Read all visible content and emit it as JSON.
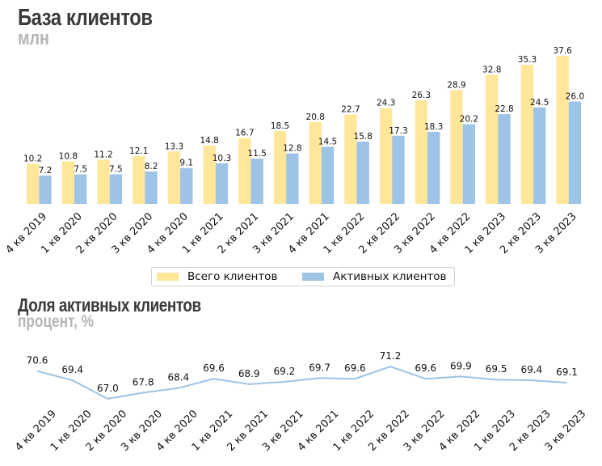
{
  "colors": {
    "total": "#ffe699",
    "active": "#9dc3e6",
    "line": "#9dc3e6",
    "title": "#3a3a3a",
    "subtitle": "#b5b5b5"
  },
  "chart_data": [
    {
      "type": "bar",
      "title": "База клиентов",
      "subtitle": "млн",
      "categories": [
        "4 кв 2019",
        "1 кв 2020",
        "2 кв 2020",
        "3 кв 2020",
        "4 кв 2020",
        "1 кв 2021",
        "2 кв 2021",
        "3 кв 2021",
        "4 кв 2021",
        "1 кв 2022",
        "2 кв 2022",
        "3 кв 2022",
        "4 кв 2022",
        "1 кв 2023",
        "2 кв 2023",
        "3 кв 2023"
      ],
      "series": [
        {
          "name": "Всего клиентов",
          "values": [
            10.2,
            10.8,
            11.2,
            12.1,
            13.3,
            14.8,
            16.7,
            18.5,
            20.8,
            22.7,
            24.3,
            26.3,
            28.9,
            32.8,
            35.3,
            37.6
          ]
        },
        {
          "name": "Активных клиентов",
          "values": [
            7.2,
            7.5,
            7.5,
            8.2,
            9.1,
            10.3,
            11.5,
            12.8,
            14.5,
            15.8,
            17.3,
            18.3,
            20.2,
            22.8,
            24.5,
            26.0
          ]
        }
      ],
      "ylim": [
        0,
        37.6
      ],
      "legend": "bottom-center"
    },
    {
      "type": "line",
      "title": "Доля активных клиентов",
      "subtitle": "процент, %",
      "categories": [
        "4 кв 2019",
        "1 кв 2020",
        "2 кв 2020",
        "3 кв 2020",
        "4 кв 2020",
        "1 кв 2021",
        "2 кв 2021",
        "3 кв 2021",
        "4 кв 2021",
        "1 кв 2022",
        "2 кв 2022",
        "3 кв 2022",
        "4 кв 2022",
        "1 кв 2023",
        "2 кв 2023",
        "3 кв 2023"
      ],
      "values": [
        70.6,
        69.4,
        67.0,
        67.8,
        68.4,
        69.6,
        68.9,
        69.2,
        69.7,
        69.6,
        71.2,
        69.6,
        69.9,
        69.5,
        69.4,
        69.1
      ],
      "ylim": [
        67.0,
        71.2
      ]
    }
  ]
}
